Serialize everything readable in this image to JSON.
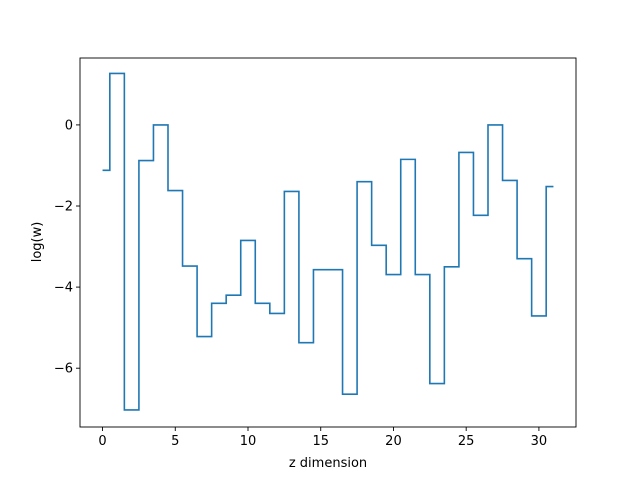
{
  "chart_data": {
    "type": "line",
    "drawstyle": "steps-mid",
    "title": "",
    "xlabel": "z dimension",
    "ylabel": "log(w)",
    "xlim": [
      -1.55,
      32.55
    ],
    "ylim": [
      -7.45,
      1.65
    ],
    "xticks": [
      0,
      5,
      10,
      15,
      20,
      25,
      30
    ],
    "yticks": [
      -6,
      -4,
      -2,
      0
    ],
    "grid": false,
    "legend": "none",
    "series": [
      {
        "color": "#1f77b4",
        "x": [
          0,
          1,
          2,
          3,
          4,
          5,
          6,
          7,
          8,
          9,
          10,
          11,
          12,
          13,
          14,
          15,
          16,
          17,
          18,
          19,
          20,
          21,
          22,
          23,
          24,
          25,
          26,
          27,
          28,
          29,
          30,
          31
        ],
        "y": [
          -1.12,
          1.27,
          -7.03,
          -0.88,
          0.0,
          -1.62,
          -3.48,
          -5.22,
          -4.4,
          -4.2,
          -2.85,
          -4.4,
          -4.65,
          -1.64,
          -5.37,
          -3.57,
          -3.57,
          -6.64,
          -1.4,
          -2.97,
          -3.69,
          -0.85,
          -3.69,
          -6.38,
          -3.5,
          -0.68,
          -2.23,
          0.0,
          -1.37,
          -3.3,
          -4.71,
          -1.52
        ]
      }
    ]
  }
}
